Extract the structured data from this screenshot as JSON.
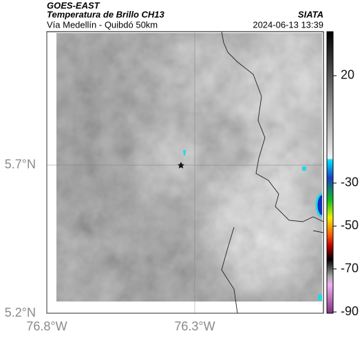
{
  "header": {
    "source": "GOES-EAST",
    "title": "Temperatura de Brillo CH13",
    "subtitle": "Vía Medellín - Quibdó 50km",
    "org": "SIATA",
    "datetime": "2024-06-13 13:39"
  },
  "map": {
    "xlim": [
      -76.8,
      -75.865
    ],
    "ylim": [
      5.2,
      6.151
    ],
    "xticks": [
      {
        "value": -76.8,
        "label": "76.8°W"
      },
      {
        "value": -76.3,
        "label": "76.3°W"
      }
    ],
    "yticks": [
      {
        "value": 5.2,
        "label": "5.2°N"
      },
      {
        "value": 5.7,
        "label": "5.7°N"
      }
    ],
    "grid": true
  },
  "colorbar": {
    "clim": [
      -90.6,
      40.5
    ],
    "ticks": [
      20,
      -30,
      -50,
      -70,
      -90
    ]
  }
}
